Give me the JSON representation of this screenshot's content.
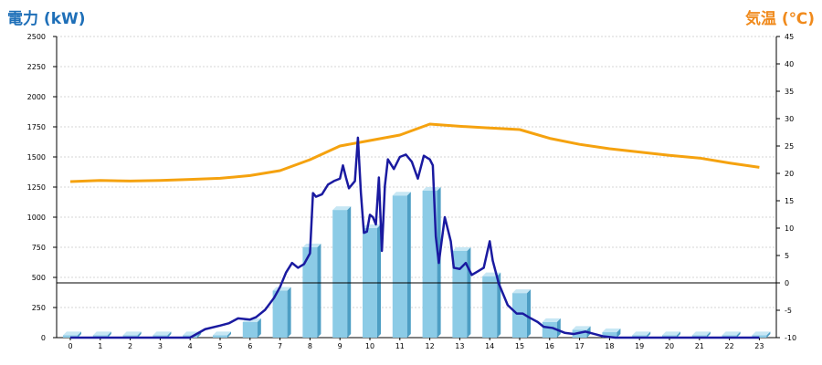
{
  "chart_data": {
    "type": "bar",
    "left_axis_label": "電力 (kW)",
    "right_axis_label": "気温 (℃)",
    "x_ticks": [
      "0",
      "1",
      "2",
      "3",
      "4",
      "5",
      "6",
      "7",
      "8",
      "9",
      "10",
      "11",
      "12",
      "13",
      "14",
      "15",
      "16",
      "17",
      "18",
      "19",
      "20",
      "21",
      "22",
      "23"
    ],
    "y_left_ticks": [
      "0",
      "250",
      "500",
      "750",
      "1000",
      "1250",
      "1500",
      "1750",
      "2000",
      "2250",
      "2500"
    ],
    "y_right_ticks": [
      "-10",
      "-5",
      "0",
      "5",
      "10",
      "15",
      "20",
      "25",
      "30",
      "35",
      "40",
      "45"
    ],
    "ylim_left": [
      0,
      2500
    ],
    "ylim_right": [
      -10,
      45
    ],
    "grid": true,
    "colors": {
      "bars": "#8ccbe6",
      "bar_side": "#4d9ec4",
      "bar_top": "#c7e7f4",
      "power_line": "#1a1aa0",
      "temp_line": "#f5a20f",
      "grid": "#c8c8c8",
      "left_title": "#1e6fb8",
      "right_title": "#f08a1c"
    },
    "bars": [
      20,
      20,
      20,
      20,
      20,
      20,
      130,
      390,
      750,
      1060,
      910,
      1180,
      1220,
      720,
      510,
      370,
      130,
      65,
      45,
      20,
      20,
      20,
      20,
      20
    ],
    "power_line": [
      [
        0,
        0
      ],
      [
        1,
        0
      ],
      [
        2,
        0
      ],
      [
        3,
        0
      ],
      [
        4,
        0
      ],
      [
        4.5,
        70
      ],
      [
        5,
        100
      ],
      [
        5.3,
        120
      ],
      [
        5.6,
        160
      ],
      [
        6,
        150
      ],
      [
        6.2,
        170
      ],
      [
        6.5,
        230
      ],
      [
        6.8,
        330
      ],
      [
        7,
        420
      ],
      [
        7.2,
        540
      ],
      [
        7.4,
        620
      ],
      [
        7.6,
        580
      ],
      [
        7.8,
        610
      ],
      [
        8,
        700
      ],
      [
        8.1,
        1200
      ],
      [
        8.2,
        1170
      ],
      [
        8.4,
        1190
      ],
      [
        8.6,
        1270
      ],
      [
        8.8,
        1300
      ],
      [
        9,
        1320
      ],
      [
        9.1,
        1430
      ],
      [
        9.2,
        1330
      ],
      [
        9.3,
        1240
      ],
      [
        9.5,
        1300
      ],
      [
        9.6,
        1660
      ],
      [
        9.7,
        1200
      ],
      [
        9.8,
        870
      ],
      [
        9.9,
        880
      ],
      [
        10,
        1020
      ],
      [
        10.1,
        1000
      ],
      [
        10.2,
        940
      ],
      [
        10.3,
        1330
      ],
      [
        10.4,
        720
      ],
      [
        10.5,
        1260
      ],
      [
        10.6,
        1480
      ],
      [
        10.8,
        1400
      ],
      [
        11,
        1500
      ],
      [
        11.2,
        1520
      ],
      [
        11.4,
        1460
      ],
      [
        11.6,
        1320
      ],
      [
        11.8,
        1510
      ],
      [
        12,
        1480
      ],
      [
        12.1,
        1430
      ],
      [
        12.2,
        840
      ],
      [
        12.3,
        620
      ],
      [
        12.5,
        1000
      ],
      [
        12.7,
        800
      ],
      [
        12.8,
        580
      ],
      [
        13,
        570
      ],
      [
        13.2,
        620
      ],
      [
        13.4,
        520
      ],
      [
        13.6,
        550
      ],
      [
        13.8,
        580
      ],
      [
        14,
        800
      ],
      [
        14.1,
        640
      ],
      [
        14.3,
        450
      ],
      [
        14.6,
        270
      ],
      [
        14.9,
        200
      ],
      [
        15.1,
        200
      ],
      [
        15.3,
        170
      ],
      [
        15.6,
        130
      ],
      [
        15.8,
        90
      ],
      [
        16.1,
        80
      ],
      [
        16.5,
        40
      ],
      [
        16.8,
        30
      ],
      [
        17.2,
        50
      ],
      [
        17.5,
        30
      ],
      [
        17.8,
        10
      ],
      [
        18.2,
        0
      ],
      [
        19,
        0
      ],
      [
        20,
        0
      ],
      [
        21,
        0
      ],
      [
        22,
        0
      ],
      [
        23,
        0
      ]
    ],
    "temperature_line": [
      [
        0,
        18.5
      ],
      [
        1,
        18.7
      ],
      [
        2,
        18.6
      ],
      [
        3,
        18.7
      ],
      [
        4,
        18.9
      ],
      [
        5,
        19.1
      ],
      [
        6,
        19.6
      ],
      [
        7,
        20.5
      ],
      [
        8,
        22.5
      ],
      [
        9,
        25
      ],
      [
        10,
        26
      ],
      [
        11,
        27
      ],
      [
        12,
        29
      ],
      [
        13,
        28.6
      ],
      [
        14,
        28.3
      ],
      [
        15,
        28
      ],
      [
        16,
        26.4
      ],
      [
        17,
        25.3
      ],
      [
        18,
        24.5
      ],
      [
        19,
        23.9
      ],
      [
        20,
        23.3
      ],
      [
        21,
        22.8
      ],
      [
        22,
        21.9
      ],
      [
        23,
        21.1
      ]
    ]
  }
}
